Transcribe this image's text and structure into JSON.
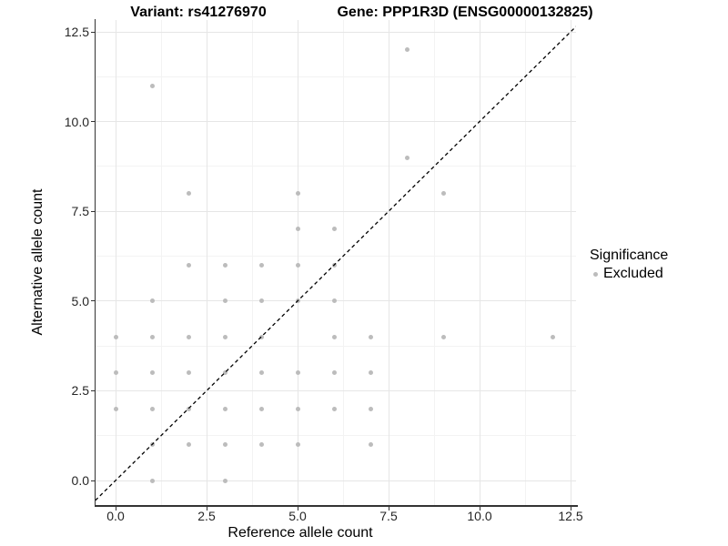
{
  "chart_data": {
    "type": "scatter",
    "title_left": "Variant: rs41276970",
    "title_right": "Gene: PPP1R3D (ENSG00000132825)",
    "xlabel": "Reference allele count",
    "ylabel": "Alternative allele count",
    "x_ticks": [
      0,
      2.5,
      5,
      7.5,
      10,
      12.5
    ],
    "y_ticks": [
      0,
      2.5,
      5,
      7.5,
      10,
      12.5
    ],
    "x_tick_labels": [
      "0.0",
      "2.5",
      "5.0",
      "7.5",
      "10.0",
      "12.5"
    ],
    "y_tick_labels": [
      "0.0",
      "2.5",
      "5.0",
      "7.5",
      "10.0",
      "12.5"
    ],
    "xlim": [
      -0.55,
      12.65
    ],
    "ylim": [
      -0.68,
      12.83
    ],
    "grid": true,
    "identity_line": {
      "equation": "y = x",
      "style": "dashed",
      "color": "#000000"
    },
    "point_color": "#bcbcbc",
    "points": [
      [
        1,
        0
      ],
      [
        3,
        0
      ],
      [
        1,
        1
      ],
      [
        2,
        1
      ],
      [
        3,
        1
      ],
      [
        4,
        1
      ],
      [
        5,
        1
      ],
      [
        7,
        1
      ],
      [
        0,
        2
      ],
      [
        1,
        2
      ],
      [
        2,
        2
      ],
      [
        3,
        2
      ],
      [
        4,
        2
      ],
      [
        5,
        2
      ],
      [
        6,
        2
      ],
      [
        7,
        2
      ],
      [
        0,
        3
      ],
      [
        1,
        3
      ],
      [
        2,
        3
      ],
      [
        3,
        3
      ],
      [
        4,
        3
      ],
      [
        5,
        3
      ],
      [
        6,
        3
      ],
      [
        7,
        3
      ],
      [
        0,
        4
      ],
      [
        1,
        4
      ],
      [
        2,
        4
      ],
      [
        3,
        4
      ],
      [
        4,
        4
      ],
      [
        6,
        4
      ],
      [
        7,
        4
      ],
      [
        9,
        4
      ],
      [
        12,
        4
      ],
      [
        1,
        5
      ],
      [
        3,
        5
      ],
      [
        4,
        5
      ],
      [
        5,
        5
      ],
      [
        6,
        5
      ],
      [
        2,
        6
      ],
      [
        3,
        6
      ],
      [
        4,
        6
      ],
      [
        5,
        6
      ],
      [
        6,
        6
      ],
      [
        5,
        7
      ],
      [
        6,
        7
      ],
      [
        2,
        8
      ],
      [
        5,
        8
      ],
      [
        9,
        8
      ],
      [
        8,
        9
      ],
      [
        1,
        11
      ],
      [
        8,
        12
      ]
    ],
    "legend": {
      "title": "Significance",
      "position": "right",
      "items": [
        {
          "label": "Excluded",
          "color": "#bcbcbc"
        }
      ]
    }
  }
}
